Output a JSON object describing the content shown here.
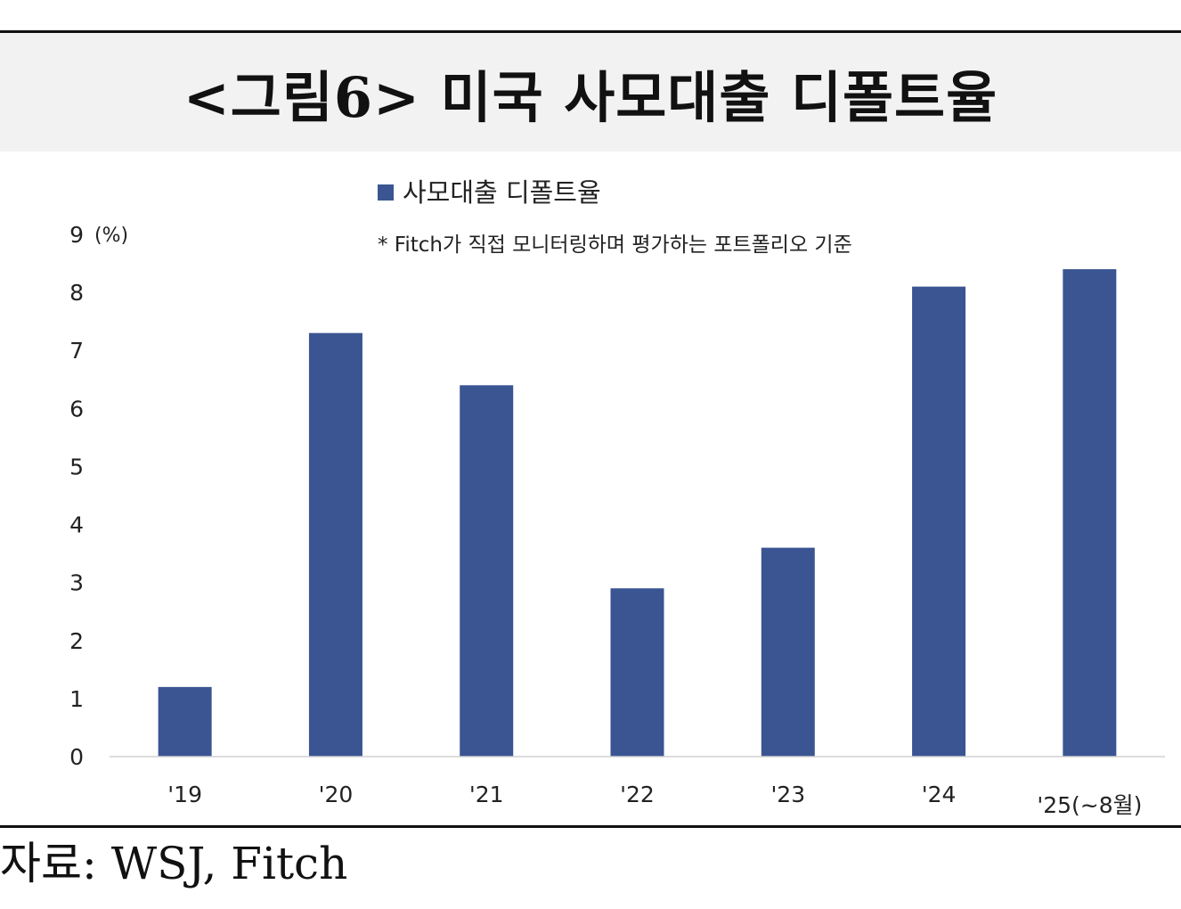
{
  "title": "<그림6> 미국 사모대출 디폴트율",
  "source": "자료: WSJ, Fitch",
  "chart_data": {
    "type": "bar",
    "categories": [
      "'19",
      "'20",
      "'21",
      "'22",
      "'23",
      "'24",
      "'25(~8월)"
    ],
    "series": [
      {
        "name": "사모대출 디폴트율",
        "values": [
          1.2,
          7.3,
          6.4,
          2.9,
          3.6,
          8.1,
          8.4
        ],
        "color": "#3a5592"
      }
    ],
    "ylabel": "(%)",
    "ylim": [
      0,
      9
    ],
    "yticks": [
      0,
      1,
      2,
      3,
      4,
      5,
      6,
      7,
      8,
      9
    ],
    "annotation": "* Fitch가 직접 모니터링하며 평가하는 포트폴리오 기준",
    "legend": "top-center",
    "grid": false
  }
}
